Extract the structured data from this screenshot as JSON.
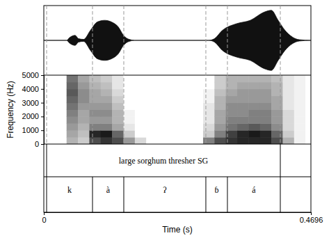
{
  "chart_data": {
    "type": "spectrogram",
    "xlabel": "Time (s)",
    "ylabel": "Frequency (Hz)",
    "xlim": [
      0,
      0.4696
    ],
    "xticks": [
      0,
      0.4696
    ],
    "ylim": [
      0,
      5000
    ],
    "yticks": [
      0,
      1000,
      2000,
      3000,
      4000,
      5000
    ],
    "waveform": {
      "ylim": [
        -1,
        1
      ],
      "time": [
        0,
        0.04,
        0.045,
        0.055,
        0.061,
        0.07,
        0.082,
        0.094,
        0.107,
        0.119,
        0.131,
        0.14,
        0.15,
        0.16,
        0.29,
        0.3,
        0.314,
        0.339,
        0.363,
        0.388,
        0.4,
        0.412,
        0.424,
        0.437,
        0.449,
        0.4696
      ],
      "amplitude": [
        0,
        0,
        0.08,
        0.15,
        0.05,
        0.03,
        0.3,
        0.55,
        0.6,
        0.55,
        0.4,
        0.15,
        0.03,
        0,
        0,
        0.05,
        0.3,
        0.5,
        0.6,
        0.85,
        0.9,
        0.6,
        0.3,
        0.1,
        0.02,
        0
      ]
    },
    "spectrogram": {
      "time_edges": [
        0,
        0.02,
        0.04,
        0.06,
        0.08,
        0.1,
        0.12,
        0.14,
        0.16,
        0.18,
        0.2,
        0.22,
        0.24,
        0.26,
        0.28,
        0.3,
        0.32,
        0.34,
        0.36,
        0.38,
        0.4,
        0.42,
        0.44,
        0.46,
        0.4696
      ],
      "frequency_edges": [
        0,
        500,
        1000,
        1500,
        2000,
        2500,
        3000,
        3500,
        4000,
        4500,
        5000
      ],
      "intensity_lim": [
        0,
        1
      ],
      "intensity": [
        [
          0,
          0,
          0,
          0,
          0,
          0,
          0,
          0,
          0,
          0
        ],
        [
          0,
          0,
          0,
          0,
          0,
          0,
          0,
          0,
          0,
          0
        ],
        [
          0.3,
          0.35,
          0.4,
          0.45,
          0.5,
          0.55,
          0.6,
          0.65,
          0.6,
          0.55
        ],
        [
          0.2,
          0.25,
          0.3,
          0.35,
          0.35,
          0.4,
          0.45,
          0.45,
          0.4,
          0.35
        ],
        [
          0.7,
          0.85,
          0.5,
          0.4,
          0.45,
          0.4,
          0.35,
          0.35,
          0.3,
          0.25
        ],
        [
          0.8,
          0.9,
          0.5,
          0.4,
          0.45,
          0.4,
          0.35,
          0.3,
          0.25,
          0.2
        ],
        [
          0.7,
          0.6,
          0.35,
          0.3,
          0.3,
          0.25,
          0.2,
          0.15,
          0.1,
          0.1
        ],
        [
          0.4,
          0.2,
          0.1,
          0.05,
          0.05,
          0,
          0,
          0,
          0,
          0
        ],
        [
          0.15,
          0,
          0,
          0,
          0,
          0,
          0,
          0,
          0,
          0
        ],
        [
          0,
          0,
          0,
          0,
          0,
          0,
          0,
          0,
          0,
          0
        ],
        [
          0,
          0,
          0,
          0,
          0,
          0,
          0,
          0,
          0,
          0
        ],
        [
          0,
          0,
          0,
          0,
          0,
          0,
          0,
          0,
          0,
          0
        ],
        [
          0,
          0,
          0,
          0,
          0,
          0,
          0,
          0,
          0,
          0
        ],
        [
          0,
          0,
          0,
          0,
          0,
          0,
          0,
          0,
          0,
          0
        ],
        [
          0.5,
          0.2,
          0.15,
          0.1,
          0.1,
          0.1,
          0.05,
          0.05,
          0,
          0
        ],
        [
          0.7,
          0.5,
          0.4,
          0.35,
          0.35,
          0.3,
          0.3,
          0.25,
          0.2,
          0.2
        ],
        [
          0.8,
          0.75,
          0.55,
          0.5,
          0.45,
          0.45,
          0.4,
          0.35,
          0.3,
          0.3
        ],
        [
          0.85,
          0.85,
          0.6,
          0.5,
          0.45,
          0.45,
          0.4,
          0.4,
          0.35,
          0.3
        ],
        [
          0.85,
          0.9,
          0.65,
          0.5,
          0.5,
          0.45,
          0.4,
          0.4,
          0.35,
          0.3
        ],
        [
          0.85,
          0.85,
          0.6,
          0.5,
          0.5,
          0.45,
          0.4,
          0.4,
          0.35,
          0.3
        ],
        [
          0.7,
          0.6,
          0.45,
          0.4,
          0.4,
          0.35,
          0.35,
          0.3,
          0.3,
          0.25
        ],
        [
          0.3,
          0.2,
          0.15,
          0.15,
          0.15,
          0.1,
          0.1,
          0.1,
          0.1,
          0.1
        ],
        [
          0.05,
          0.05,
          0.05,
          0.05,
          0.05,
          0.05,
          0.05,
          0.05,
          0.05,
          0.05
        ],
        [
          0,
          0,
          0,
          0,
          0,
          0,
          0,
          0,
          0,
          0
        ]
      ]
    },
    "tiers": [
      {
        "intervals": [
          {
            "start": 0.0049,
            "end": 0.4158,
            "label": "large sorghum thresher SG"
          }
        ]
      },
      {
        "intervals": [
          {
            "start": 0.0049,
            "end": 0.0856,
            "label": "k"
          },
          {
            "start": 0.0856,
            "end": 0.1406,
            "label": "à"
          },
          {
            "start": 0.1406,
            "end": 0.2849,
            "label": "ʔ"
          },
          {
            "start": 0.2849,
            "end": 0.3228,
            "label": "ɓ"
          },
          {
            "start": 0.3228,
            "end": 0.4158,
            "label": "á"
          }
        ]
      }
    ]
  }
}
